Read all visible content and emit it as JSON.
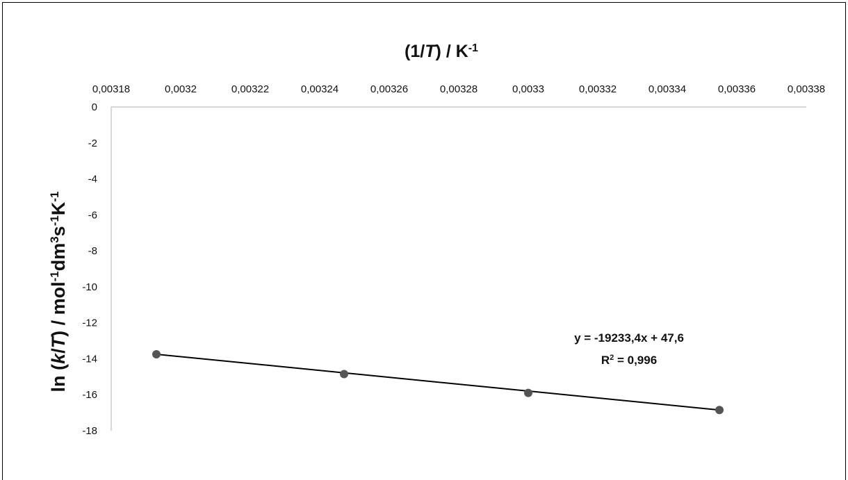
{
  "chart_data": {
    "type": "scatter",
    "title_parts": {
      "prefix": "(1/",
      "italic": "T",
      "suffix": ") / K",
      "sup": "-1"
    },
    "ylabel_parts": {
      "ln": "ln (",
      "k": "k",
      "slash": "/",
      "T": "T",
      "close": ") / mol",
      "sup1": "-1",
      "dm": "dm",
      "sup2": "3",
      "s": "s",
      "sup3": "-1",
      "K": "K",
      "sup4": "-1"
    },
    "x_ticks": [
      "0,00318",
      "0,0032",
      "0,00322",
      "0,00324",
      "0,00326",
      "0,00328",
      "0,0033",
      "0,00332",
      "0,00334",
      "0,00336",
      "0,00338"
    ],
    "y_ticks": [
      "0",
      "-2",
      "-4",
      "-6",
      "-8",
      "-10",
      "-12",
      "-14",
      "-16",
      "-18"
    ],
    "xlim": [
      0.00318,
      0.00338
    ],
    "ylim": [
      -18,
      0
    ],
    "x_axis_position": "top",
    "grid": false,
    "legend": "none",
    "points": [
      {
        "x": 0.003193,
        "y": -13.75
      },
      {
        "x": 0.003247,
        "y": -14.85
      },
      {
        "x": 0.0033,
        "y": -15.9
      },
      {
        "x": 0.003355,
        "y": -16.85
      }
    ],
    "trendline": {
      "slope": -19233.4,
      "intercept": 47.6,
      "x_from": 0.003193,
      "x_to": 0.003355
    },
    "equation_text": "y = -19233,4x + 47,6",
    "r2_label": {
      "R": "R",
      "sup": "2",
      "rest": " = 0,996"
    },
    "colors": {
      "point": "#555555",
      "line": "#000000",
      "axis": "#c8c8c8"
    }
  }
}
